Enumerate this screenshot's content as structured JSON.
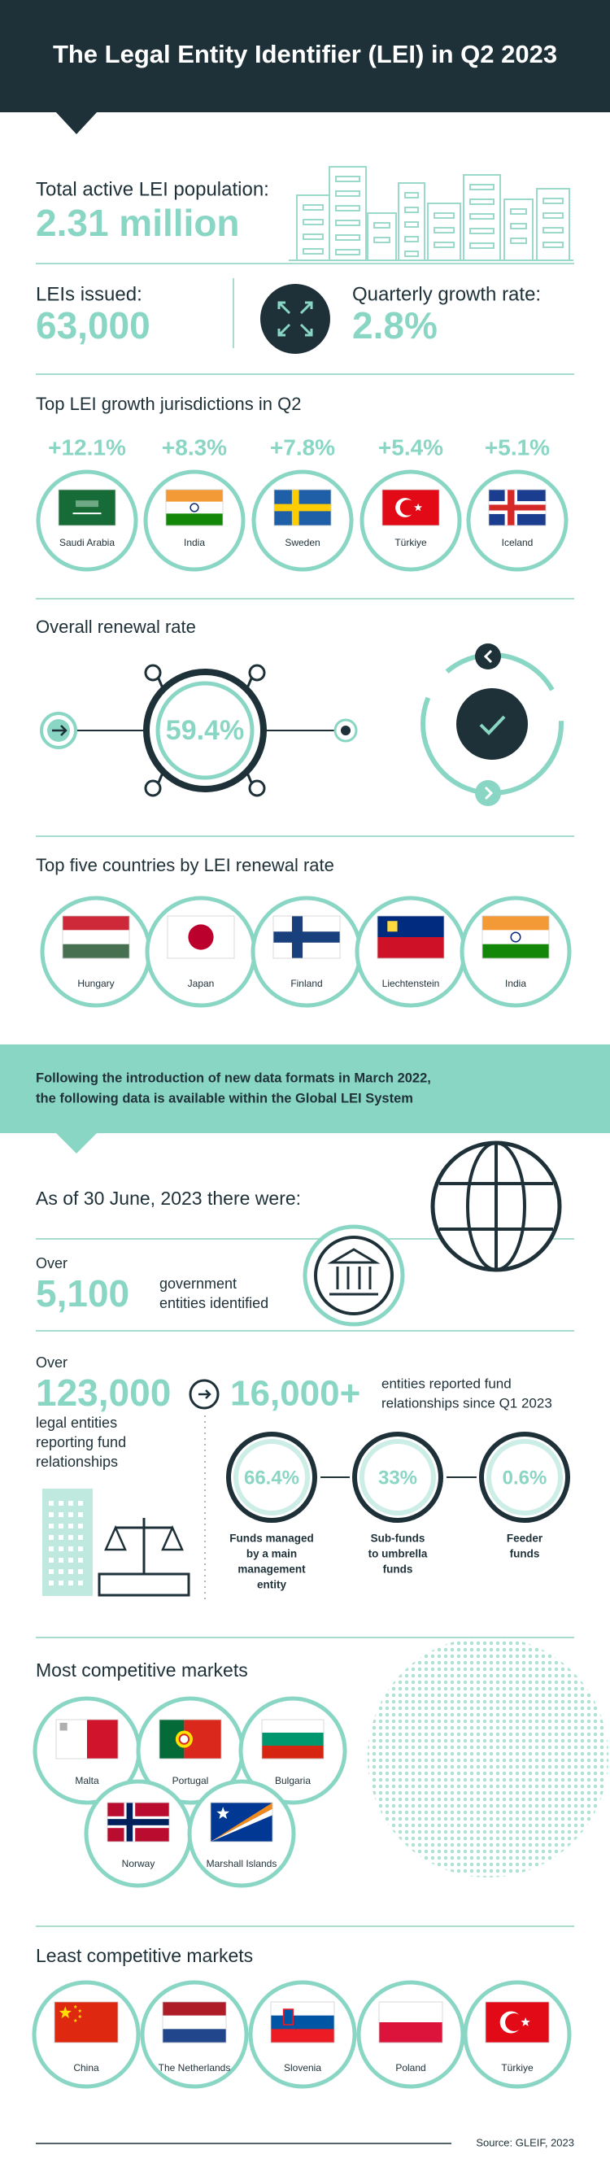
{
  "header": {
    "title": "The Legal Entity Identifier (LEI) in Q2 2023"
  },
  "population": {
    "label": "Total active LEI population:",
    "value": "2.31 million"
  },
  "issued": {
    "label": "LEIs issued:",
    "value": "63,000"
  },
  "growth": {
    "label": "Quarterly growth rate:",
    "value": "2.8%"
  },
  "top_growth": {
    "title": "Top LEI growth jurisdictions in Q2",
    "items": [
      {
        "change": "+12.1%",
        "country": "Saudi Arabia"
      },
      {
        "change": "+8.3%",
        "country": "India"
      },
      {
        "change": "+7.8%",
        "country": "Sweden"
      },
      {
        "change": "+5.4%",
        "country": "Türkiye"
      },
      {
        "change": "+5.1%",
        "country": "Iceland"
      }
    ]
  },
  "renewal": {
    "title": "Overall renewal rate",
    "value": "59.4%"
  },
  "top_renewal": {
    "title": "Top five countries by LEI renewal rate",
    "countries": [
      "Hungary",
      "Japan",
      "Finland",
      "Liechtenstein",
      "India"
    ]
  },
  "banner": {
    "lines": [
      "Following the introduction of new data formats in March 2022,",
      "the following data is available within the Global LEI System"
    ]
  },
  "as_of": "As of 30 June, 2023 there were:",
  "government": {
    "prefix": "Over",
    "value": "5,100",
    "lines": [
      "government",
      "entities identified"
    ]
  },
  "funds": {
    "prefix": "Over",
    "value": "123,000",
    "lines": [
      "legal entities",
      "reporting fund",
      "relationships"
    ],
    "since": {
      "value": "16,000+",
      "lines": [
        "entities reported fund",
        "relationships since Q1 2023"
      ]
    },
    "gauges": [
      {
        "value": "66.4%",
        "lines": [
          "Funds managed",
          "by a main",
          "management",
          "entity"
        ]
      },
      {
        "value": "33%",
        "lines": [
          "Sub-funds",
          "to umbrella",
          "funds"
        ]
      },
      {
        "value": "0.6%",
        "lines": [
          "Feeder",
          "funds"
        ]
      }
    ]
  },
  "most_competitive": {
    "title": "Most competitive markets",
    "countries": [
      "Malta",
      "Portugal",
      "Bulgaria",
      "Norway",
      "Marshall Islands"
    ]
  },
  "least_competitive": {
    "title": "Least competitive markets",
    "countries": [
      "China",
      "The Netherlands",
      "Slovenia",
      "Poland",
      "Türkiye"
    ]
  },
  "source": "Source: GLEIF, 2023"
}
